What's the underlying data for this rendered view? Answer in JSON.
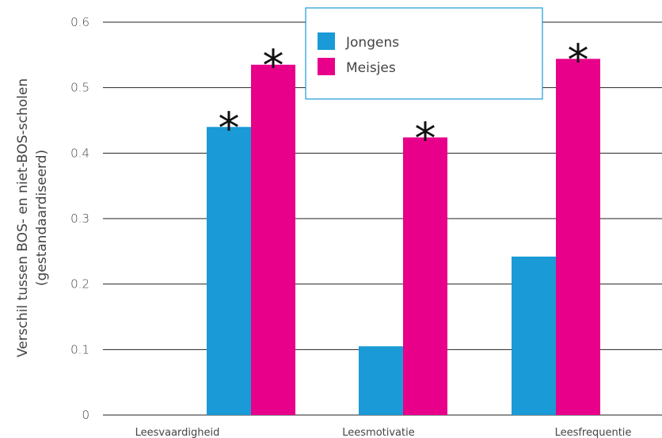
{
  "chart_data": {
    "type": "bar",
    "categories": [
      "Leesvaardigheid",
      "Leesmotivatie",
      "Leesfrequentie"
    ],
    "series": [
      {
        "name": "Jongens",
        "color": "#1a9ad6",
        "values": [
          0.44,
          0.105,
          0.242
        ],
        "significant": [
          "*",
          "",
          ""
        ]
      },
      {
        "name": "Meisjes",
        "color": "#e8008a",
        "values": [
          0.535,
          0.424,
          0.544
        ],
        "significant": [
          "*",
          "*",
          "*"
        ]
      }
    ],
    "ylabel_lines": [
      "Verschil tussen BOS- en niet-BOS-scholen",
      "(gestandaardiseerd)"
    ],
    "ylim": [
      0,
      0.6
    ],
    "yticks": [
      "0",
      "0.1",
      "0.2",
      "0.3",
      "0.4",
      "0.5",
      "0.6"
    ],
    "ytick_values": [
      0,
      0.1,
      0.2,
      0.3,
      0.4,
      0.5,
      0.6
    ],
    "grid": true,
    "legend_position": "top-center",
    "legend_border_color": "#1a9ad6"
  }
}
